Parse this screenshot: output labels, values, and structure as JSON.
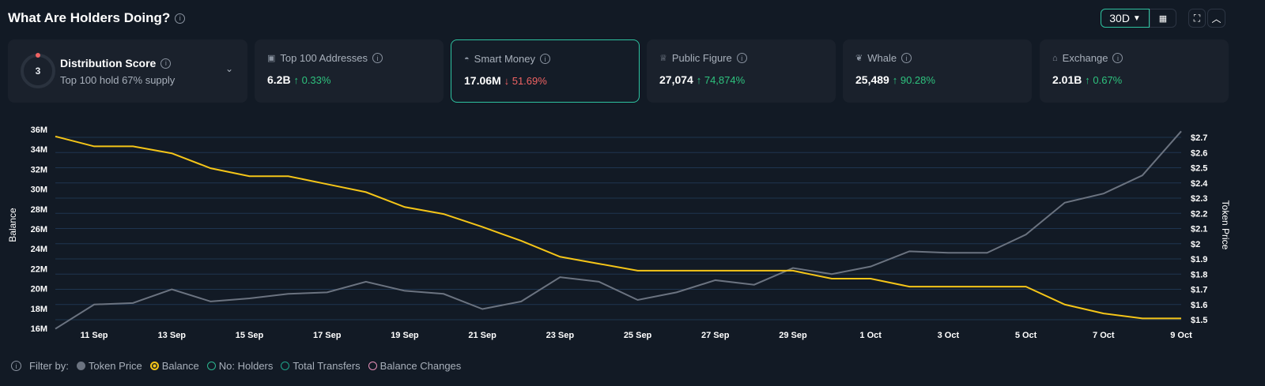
{
  "header": {
    "title": "What Are Holders Doing?",
    "period": "30D",
    "period_icon": "caret-down-icon",
    "calendar_icon": "calendar-icon",
    "expand_icon": "expand-icon",
    "collapse_icon": "chevron-up-icon"
  },
  "cards": [
    {
      "label": "Distribution Score",
      "score": "3",
      "sub": "Top 100 hold 67% supply"
    },
    {
      "label": "Top 100 Addresses",
      "value": "6.2B",
      "change": "0.33%",
      "dir": "up",
      "icon": "wallet-icon"
    },
    {
      "label": "Smart Money",
      "value": "17.06M",
      "change": "51.69%",
      "dir": "down",
      "icon": "sunglasses-icon"
    },
    {
      "label": "Public Figure",
      "value": "27,074",
      "change": "74,874%",
      "dir": "up",
      "icon": "podium-icon"
    },
    {
      "label": "Whale",
      "value": "25,489",
      "change": "90.28%",
      "dir": "up",
      "icon": "whale-icon"
    },
    {
      "label": "Exchange",
      "value": "2.01B",
      "change": "0.67%",
      "dir": "up",
      "icon": "bank-icon"
    }
  ],
  "legend": {
    "title": "Filter by:",
    "items": [
      {
        "label": "Token Price",
        "color": "#6b7380",
        "active": true
      },
      {
        "label": "Balance",
        "color": "#f5c518",
        "active": true
      },
      {
        "label": "No: Holders",
        "color": "#2bb58f",
        "active": false
      },
      {
        "label": "Total Transfers",
        "color": "#1fa38a",
        "active": false
      },
      {
        "label": "Balance Changes",
        "color": "#e58fb8",
        "active": false
      }
    ]
  },
  "chart_data": {
    "type": "line",
    "x": [
      "10 Sep",
      "11 Sep",
      "12 Sep",
      "13 Sep",
      "14 Sep",
      "15 Sep",
      "16 Sep",
      "17 Sep",
      "18 Sep",
      "19 Sep",
      "20 Sep",
      "21 Sep",
      "22 Sep",
      "23 Sep",
      "24 Sep",
      "25 Sep",
      "26 Sep",
      "27 Sep",
      "28 Sep",
      "29 Sep",
      "30 Sep",
      "1 Oct",
      "2 Oct",
      "3 Oct",
      "4 Oct",
      "5 Oct",
      "6 Oct",
      "7 Oct",
      "8 Oct",
      "9 Oct"
    ],
    "xticks": [
      "11 Sep",
      "13 Sep",
      "15 Sep",
      "17 Sep",
      "19 Sep",
      "21 Sep",
      "23 Sep",
      "25 Sep",
      "27 Sep",
      "29 Sep",
      "1 Oct",
      "3 Oct",
      "5 Oct",
      "7 Oct",
      "9 Oct"
    ],
    "ylabel": "Balance",
    "y2label": "Token Price",
    "yticks": [
      "16M",
      "18M",
      "20M",
      "22M",
      "24M",
      "26M",
      "28M",
      "30M",
      "32M",
      "34M",
      "36M"
    ],
    "y2ticks": [
      "$1.5",
      "$1.6",
      "$1.7",
      "$1.8",
      "$1.9",
      "$2",
      "$2.1",
      "$2.2",
      "$2.3",
      "$2.4",
      "$2.5",
      "$2.6",
      "$2.7"
    ],
    "ylim": [
      16000000,
      36000000
    ],
    "y2lim": [
      1.5,
      2.7
    ],
    "grid": true,
    "series": [
      {
        "name": "Balance",
        "axis": "left",
        "color": "#f5c518",
        "values": [
          35.3,
          34.3,
          34.3,
          33.6,
          32.1,
          31.3,
          31.3,
          30.5,
          29.7,
          28.2,
          27.5,
          26.2,
          24.8,
          23.2,
          22.5,
          21.8,
          21.8,
          21.8,
          21.8,
          21.8,
          21.0,
          21.0,
          20.2,
          20.2,
          20.2,
          20.2,
          18.4,
          17.5,
          17.0,
          17.0
        ]
      },
      {
        "name": "Token Price",
        "axis": "right",
        "color": "#6b7380",
        "values": [
          1.44,
          1.6,
          1.61,
          1.7,
          1.62,
          1.64,
          1.67,
          1.68,
          1.75,
          1.69,
          1.67,
          1.57,
          1.62,
          1.78,
          1.75,
          1.63,
          1.68,
          1.76,
          1.73,
          1.84,
          1.8,
          1.85,
          1.95,
          1.94,
          1.94,
          2.06,
          2.27,
          2.33,
          2.45,
          2.74
        ]
      }
    ]
  }
}
